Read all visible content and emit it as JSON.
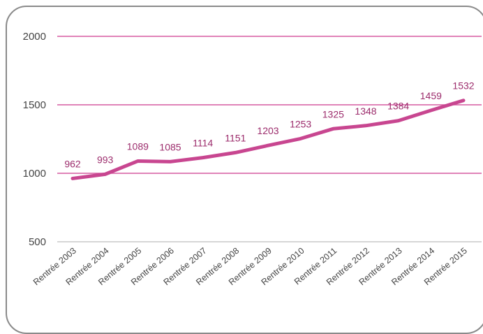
{
  "chart_data": {
    "type": "line",
    "categories": [
      "Rentrée 2003",
      "Rentrée 2004",
      "Rentrée 2005",
      "Rentrée 2006",
      "Rentrée 2007",
      "Rentrée 2008",
      "Rentrée 2009",
      "Rentrée 2010",
      "Rentrée 2011",
      "Rentrée 2012",
      "Rentrée 2013",
      "Rentrée 2014",
      "Rentrée 2015"
    ],
    "values": [
      962,
      993,
      1089,
      1085,
      1114,
      1151,
      1203,
      1253,
      1325,
      1348,
      1384,
      1459,
      1532
    ],
    "yticks": [
      500,
      1000,
      1500,
      2000
    ],
    "ylim": [
      500,
      2000
    ],
    "grid": true,
    "legend": "none",
    "title": "",
    "xlabel": "",
    "ylabel": ""
  },
  "colors": {
    "line": "#c84690",
    "grid": "#d55aa1",
    "label": "#9c2c6c",
    "axis_text": "#444444",
    "frame": "#8a8a8a"
  }
}
